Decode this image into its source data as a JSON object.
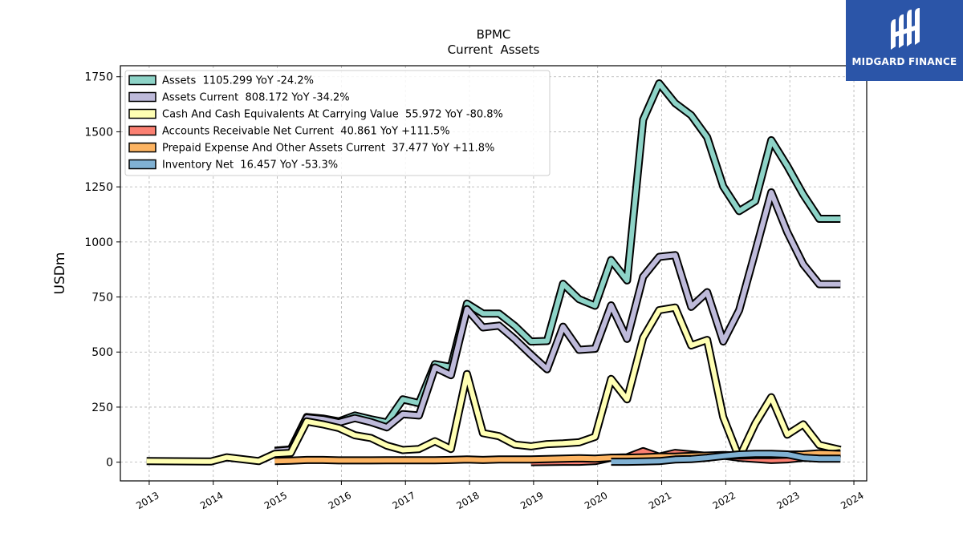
{
  "brand": {
    "name": "MIDGARD FINANCE",
    "color": "#2b55a8"
  },
  "chart_data": {
    "type": "line",
    "title": "BPMC",
    "subtitle": "Current  Assets",
    "ylabel": "USDm",
    "xlabel": "",
    "xlim": [
      2012.55,
      2024.2
    ],
    "ylim": [
      -85,
      1800
    ],
    "x_ticks": [
      2013,
      2014,
      2015,
      2016,
      2017,
      2018,
      2019,
      2020,
      2021,
      2022,
      2023,
      2024
    ],
    "x_tick_labels": [
      "2013",
      "2014",
      "2015",
      "2016",
      "2017",
      "2018",
      "2019",
      "2020",
      "2021",
      "2022",
      "2023",
      "2024"
    ],
    "y_ticks": [
      0,
      250,
      500,
      750,
      1000,
      1250,
      1500,
      1750
    ],
    "y_tick_labels": [
      "0",
      "250",
      "500",
      "750",
      "1000",
      "1250",
      "1500",
      "1750"
    ],
    "grid": true,
    "legend_position": "top-left",
    "series": [
      {
        "name": "Assets  1105.299 YoY -24.2%",
        "color": "#8dd3c7",
        "x": [
          2014.96,
          2015.21,
          2015.46,
          2015.71,
          2015.96,
          2016.21,
          2016.46,
          2016.71,
          2016.96,
          2017.21,
          2017.46,
          2017.71,
          2017.96,
          2018.21,
          2018.46,
          2018.71,
          2018.96,
          2019.21,
          2019.46,
          2019.71,
          2019.96,
          2020.21,
          2020.46,
          2020.71,
          2020.96,
          2021.21,
          2021.46,
          2021.71,
          2021.96,
          2022.21,
          2022.46,
          2022.71,
          2022.96,
          2023.21,
          2023.46,
          2023.79
        ],
        "values": [
          52,
          58,
          205,
          198,
          185,
          212,
          195,
          180,
          285,
          268,
          445,
          432,
          720,
          675,
          675,
          618,
          548,
          550,
          810,
          740,
          710,
          918,
          825,
          1555,
          1720,
          1630,
          1575,
          1475,
          1252,
          1140,
          1185,
          1462,
          1345,
          1215,
          1105,
          1105
        ]
      },
      {
        "name": "Assets Current  808.172 YoY -34.2%",
        "color": "#bebada",
        "x": [
          2014.96,
          2015.21,
          2015.46,
          2015.71,
          2015.96,
          2016.21,
          2016.46,
          2016.71,
          2016.96,
          2017.21,
          2017.46,
          2017.71,
          2017.96,
          2018.21,
          2018.46,
          2018.71,
          2018.96,
          2019.21,
          2019.46,
          2019.71,
          2019.96,
          2020.21,
          2020.46,
          2020.71,
          2020.96,
          2021.21,
          2021.46,
          2021.71,
          2021.96,
          2022.21,
          2022.46,
          2022.71,
          2022.96,
          2023.21,
          2023.46,
          2023.79
        ],
        "values": [
          50,
          56,
          202,
          195,
          180,
          200,
          182,
          158,
          218,
          212,
          430,
          395,
          695,
          612,
          620,
          558,
          488,
          422,
          615,
          510,
          515,
          712,
          560,
          842,
          932,
          940,
          705,
          772,
          548,
          690,
          955,
          1225,
          1045,
          898,
          808,
          808
        ]
      },
      {
        "name": "Cash And Cash Equivalents At Carrying Value  55.972 YoY -80.8%",
        "color": "#ffffb3",
        "x": [
          2012.96,
          2013.96,
          2014.21,
          2014.71,
          2014.96,
          2015.21,
          2015.46,
          2015.71,
          2015.96,
          2016.21,
          2016.46,
          2016.71,
          2016.96,
          2017.21,
          2017.46,
          2017.71,
          2017.96,
          2018.21,
          2018.46,
          2018.71,
          2018.96,
          2019.21,
          2019.46,
          2019.71,
          2019.96,
          2020.21,
          2020.46,
          2020.71,
          2020.96,
          2021.21,
          2021.46,
          2021.71,
          2021.96,
          2022.21,
          2022.46,
          2022.71,
          2022.96,
          2023.21,
          2023.46,
          2023.79
        ],
        "values": [
          5,
          3,
          22,
          5,
          38,
          42,
          185,
          172,
          155,
          122,
          110,
          75,
          55,
          60,
          95,
          60,
          400,
          132,
          118,
          80,
          72,
          82,
          85,
          90,
          115,
          378,
          285,
          565,
          690,
          702,
          530,
          555,
          205,
          20,
          175,
          295,
          125,
          172,
          78,
          56
        ]
      },
      {
        "name": "Accounts Receivable Net Current  40.861 YoY +111.5%",
        "color": "#fb8072",
        "x": [
          2018.96,
          2019.21,
          2019.46,
          2019.71,
          2019.96,
          2020.21,
          2020.46,
          2020.71,
          2020.96,
          2021.21,
          2021.46,
          2021.71,
          2021.96,
          2022.21,
          2022.46,
          2022.71,
          2022.96,
          2023.21,
          2023.46,
          2023.79
        ],
        "values": [
          0,
          1,
          2,
          2,
          5,
          20,
          22,
          50,
          25,
          42,
          35,
          28,
          30,
          20,
          15,
          10,
          13,
          20,
          30,
          41
        ]
      },
      {
        "name": "Prepaid Expense And Other Assets Current  37.477 YoY +11.8%",
        "color": "#fdb462",
        "x": [
          2014.96,
          2015.21,
          2015.46,
          2015.71,
          2015.96,
          2016.21,
          2016.46,
          2016.71,
          2016.96,
          2017.21,
          2017.46,
          2017.71,
          2017.96,
          2018.21,
          2018.46,
          2018.71,
          2018.96,
          2019.21,
          2019.46,
          2019.71,
          2019.96,
          2020.21,
          2020.46,
          2020.71,
          2020.96,
          2021.21,
          2021.46,
          2021.71,
          2021.96,
          2022.21,
          2022.46,
          2022.71,
          2022.96,
          2023.21,
          2023.46,
          2023.79
        ],
        "values": [
          5,
          7,
          10,
          10,
          8,
          8,
          8,
          9,
          9,
          9,
          9,
          10,
          12,
          10,
          12,
          12,
          12,
          14,
          16,
          18,
          16,
          20,
          20,
          22,
          25,
          25,
          28,
          30,
          32,
          30,
          32,
          32,
          34,
          35,
          40,
          37
        ]
      },
      {
        "name": "Inventory Net  16.457 YoY -53.3%",
        "color": "#80b1d3",
        "x": [
          2020.21,
          2020.46,
          2020.71,
          2020.96,
          2021.21,
          2021.46,
          2021.71,
          2021.96,
          2022.21,
          2022.46,
          2022.71,
          2022.96,
          2023.21,
          2023.46,
          2023.79
        ],
        "values": [
          2,
          2,
          3,
          5,
          12,
          14,
          20,
          28,
          35,
          38,
          38,
          35,
          20,
          16,
          16
        ]
      }
    ]
  }
}
